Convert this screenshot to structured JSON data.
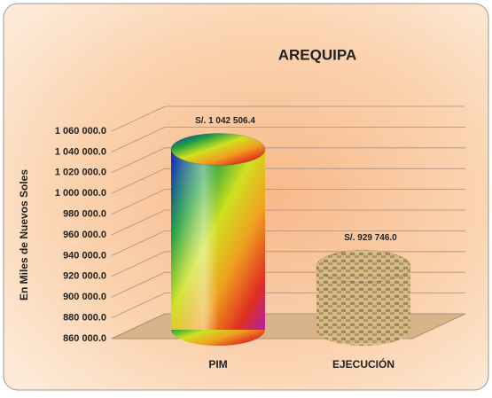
{
  "chart_data": {
    "type": "cylinder-bar",
    "title": "AREQUIPA",
    "y_label": "En Miles de Nuevos Soles",
    "categories": [
      "PIM",
      "EJECUCIÓN"
    ],
    "values": [
      1042506.4,
      929746.0
    ],
    "value_labels": [
      "S/. 1 042 506.4",
      "S/.  929 746.0"
    ],
    "ylim": [
      860000,
      1060000
    ],
    "yticks": [
      {
        "value": 860000,
        "label": "860 000.0"
      },
      {
        "value": 880000,
        "label": "880 000.0"
      },
      {
        "value": 900000,
        "label": "900 000.0"
      },
      {
        "value": 920000,
        "label": "920 000.0"
      },
      {
        "value": 940000,
        "label": "940 000.0"
      },
      {
        "value": 960000,
        "label": "960 000.0"
      },
      {
        "value": 980000,
        "label": "980 000.0"
      },
      {
        "value": 1000000,
        "label": "1 000 000.0"
      },
      {
        "value": 1020000,
        "label": "1 020 000.0"
      },
      {
        "value": 1040000,
        "label": "1 040 000.0"
      },
      {
        "value": 1060000,
        "label": "1 060 000.0"
      }
    ],
    "grid": true
  }
}
